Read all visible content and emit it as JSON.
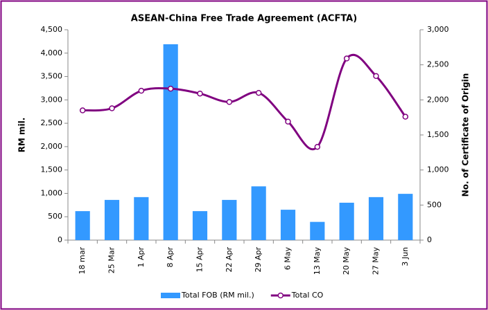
{
  "chart_data": {
    "type": "bar",
    "title": "ASEAN-China Free Trade Agreement (ACFTA)",
    "ylabel": "RM mil.",
    "y2label": "No. of Certificate of Origin",
    "categories": [
      "18 mar",
      "25 Mar",
      "1 Apr",
      "8 Apr",
      "15 Apr",
      "22 Apr",
      "29 Apr",
      "6 May",
      "13 May",
      "20 May",
      "27 May",
      "3 Jun"
    ],
    "series": [
      {
        "name": "Total FOB (RM mil.)",
        "type": "bar",
        "color": "#3399ff",
        "values": [
          620,
          860,
          920,
          4190,
          620,
          860,
          1150,
          650,
          390,
          800,
          920,
          990
        ]
      },
      {
        "name": "Total CO",
        "type": "line",
        "axis": "y2",
        "smooth": true,
        "color": "#800080",
        "values": [
          1850,
          1880,
          2130,
          2160,
          2090,
          1970,
          2100,
          1690,
          1330,
          2590,
          2340,
          1760
        ]
      }
    ],
    "ylim": [
      0,
      4500
    ],
    "yticks": [
      0,
      500,
      {
        "value": 1000,
        "label": "1,000"
      },
      {
        "value": 1500,
        "label": "1,500"
      },
      {
        "value": 2000,
        "label": "2,000"
      },
      {
        "value": 2500,
        "label": "2,500"
      },
      {
        "value": 3000,
        "label": "3,000"
      },
      {
        "value": 3500,
        "label": "3,500"
      },
      {
        "value": 4000,
        "label": "4,000"
      },
      {
        "value": 4500,
        "label": "4,500"
      }
    ],
    "y2lim": [
      0,
      3000
    ],
    "y2ticks": [
      0,
      500,
      {
        "value": 1000,
        "label": "1,000"
      },
      {
        "value": 1500,
        "label": "1,500"
      },
      {
        "value": 2000,
        "label": "2,000"
      },
      {
        "value": 2500,
        "label": "2,500"
      },
      {
        "value": 3000,
        "label": "3,000"
      }
    ],
    "grid": false,
    "legend": "bottom"
  }
}
